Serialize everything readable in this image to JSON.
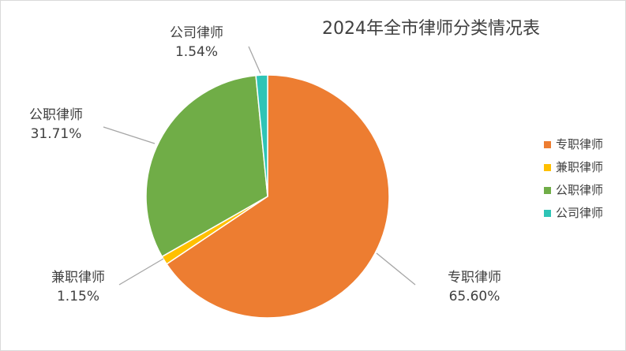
{
  "chart_data": {
    "type": "pie",
    "title": "2024年全市律师分类情况表",
    "slices": [
      {
        "name": "专职律师",
        "percent_label": "65.60%",
        "value": 65.6,
        "color": "#ed7d31"
      },
      {
        "name": "兼职律师",
        "percent_label": "1.15%",
        "value": 1.15,
        "color": "#ffc000"
      },
      {
        "name": "公职律师",
        "percent_label": "31.71%",
        "value": 31.71,
        "color": "#70ad47"
      },
      {
        "name": "公司律师",
        "percent_label": "1.54%",
        "value": 1.54,
        "color": "#2ec4b6"
      }
    ],
    "legend_position": "right",
    "start_angle_deg": 0,
    "direction": "clockwise"
  }
}
